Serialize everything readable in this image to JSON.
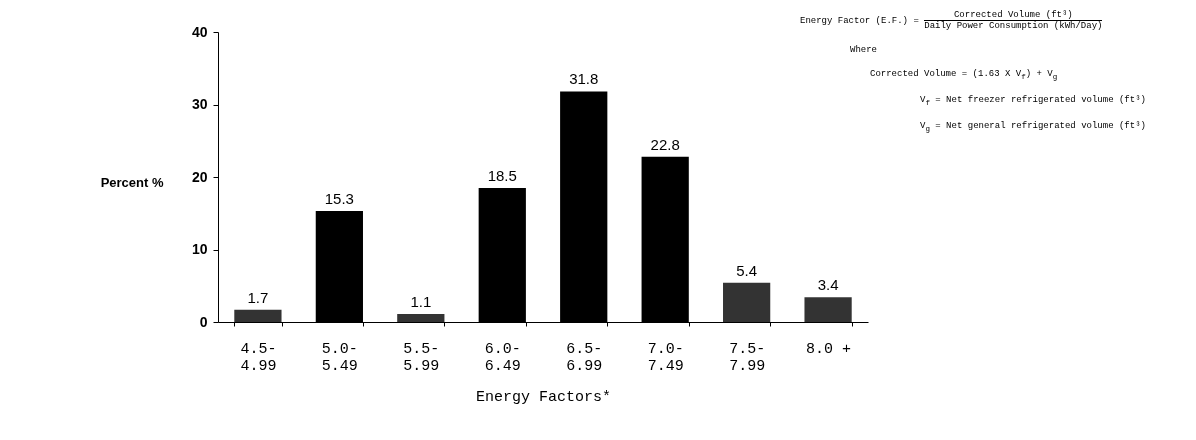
{
  "chart_data": {
    "type": "bar",
    "xlabel": "Energy Factors*",
    "ylabel": "Percent %",
    "categories": [
      "4.5-\n4.99",
      "5.0-\n5.49",
      "5.5-\n5.99",
      "6.0-\n6.49",
      "6.5-\n6.99",
      "7.0-\n7.49",
      "7.5-\n7.99",
      "8.0 +"
    ],
    "values": [
      1.7,
      15.3,
      1.1,
      18.5,
      31.8,
      22.8,
      5.4,
      3.4
    ],
    "colors": [
      "#333333",
      "#000000",
      "#333333",
      "#000000",
      "#000000",
      "#000000",
      "#333333",
      "#333333"
    ],
    "ylim": [
      0,
      40
    ],
    "yticks": [
      0,
      10,
      20,
      30,
      40
    ],
    "grid": false,
    "data_labels": true,
    "annotations": [
      "Energy Factor (E.F.) =",
      "Corrected Volume (ft³)",
      "Daily Power Consumption (kWh/Day)",
      "Where",
      "Corrected Volume = (1.63 X V$_{f}$) + V$_{g}$",
      "V$_{f}$ = Net freezer refrigerated volume (ft³)",
      "V$_{g}$ = Net general refrigerated volume (ft³)"
    ]
  }
}
